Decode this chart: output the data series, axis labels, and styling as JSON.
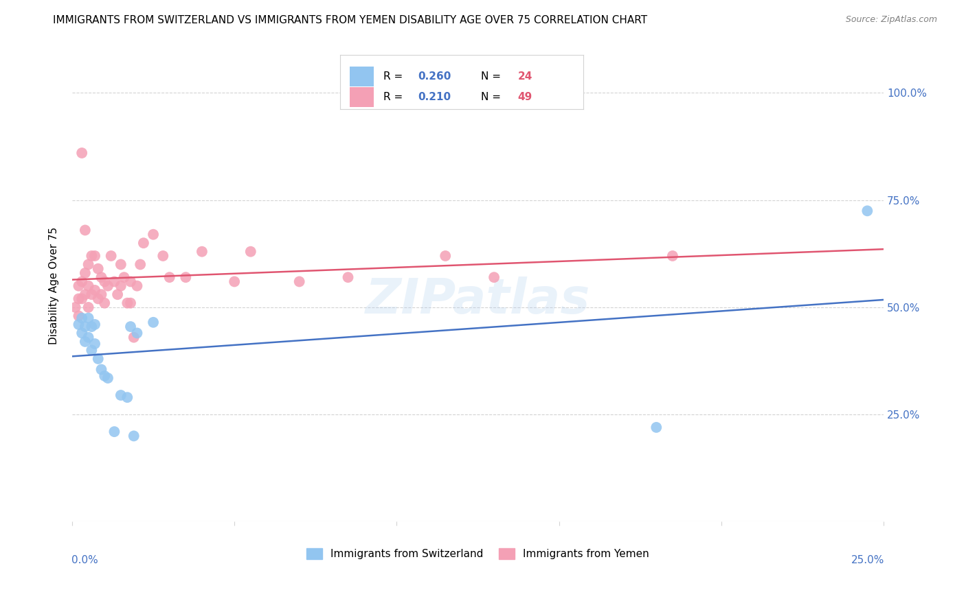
{
  "title": "IMMIGRANTS FROM SWITZERLAND VS IMMIGRANTS FROM YEMEN DISABILITY AGE OVER 75 CORRELATION CHART",
  "source": "Source: ZipAtlas.com",
  "ylabel": "Disability Age Over 75",
  "xlim": [
    0.0,
    0.25
  ],
  "ylim": [
    0.0,
    1.1
  ],
  "ytick_vals": [
    0.25,
    0.5,
    0.75,
    1.0
  ],
  "ytick_labels": [
    "25.0%",
    "50.0%",
    "75.0%",
    "100.0%"
  ],
  "legend1_r": "0.260",
  "legend1_n": "24",
  "legend2_r": "0.210",
  "legend2_n": "49",
  "color_swiss": "#92c5f0",
  "color_yemen": "#f4a0b5",
  "color_swiss_line": "#4472c4",
  "color_yemen_line": "#e05570",
  "color_blue": "#4472c4",
  "color_pink": "#e05570",
  "watermark": "ZIPatlas",
  "swiss_x": [
    0.002,
    0.003,
    0.003,
    0.004,
    0.004,
    0.005,
    0.005,
    0.006,
    0.006,
    0.007,
    0.007,
    0.008,
    0.009,
    0.01,
    0.011,
    0.013,
    0.015,
    0.017,
    0.018,
    0.019,
    0.02,
    0.025,
    0.18,
    0.245
  ],
  "swiss_y": [
    0.46,
    0.475,
    0.44,
    0.455,
    0.42,
    0.475,
    0.43,
    0.455,
    0.4,
    0.415,
    0.46,
    0.38,
    0.355,
    0.34,
    0.335,
    0.21,
    0.295,
    0.29,
    0.455,
    0.2,
    0.44,
    0.465,
    0.22,
    0.725
  ],
  "yemen_x": [
    0.001,
    0.002,
    0.002,
    0.002,
    0.003,
    0.003,
    0.003,
    0.004,
    0.004,
    0.004,
    0.005,
    0.005,
    0.005,
    0.006,
    0.006,
    0.007,
    0.007,
    0.008,
    0.008,
    0.009,
    0.009,
    0.01,
    0.01,
    0.011,
    0.012,
    0.013,
    0.014,
    0.015,
    0.015,
    0.016,
    0.017,
    0.018,
    0.018,
    0.019,
    0.02,
    0.021,
    0.022,
    0.025,
    0.028,
    0.03,
    0.035,
    0.04,
    0.05,
    0.055,
    0.07,
    0.085,
    0.115,
    0.13,
    0.185
  ],
  "yemen_y": [
    0.5,
    0.55,
    0.52,
    0.48,
    0.86,
    0.56,
    0.52,
    0.58,
    0.53,
    0.68,
    0.6,
    0.55,
    0.5,
    0.62,
    0.53,
    0.62,
    0.54,
    0.59,
    0.52,
    0.57,
    0.53,
    0.56,
    0.51,
    0.55,
    0.62,
    0.56,
    0.53,
    0.6,
    0.55,
    0.57,
    0.51,
    0.56,
    0.51,
    0.43,
    0.55,
    0.6,
    0.65,
    0.67,
    0.62,
    0.57,
    0.57,
    0.63,
    0.56,
    0.63,
    0.56,
    0.57,
    0.62,
    0.57,
    0.62
  ]
}
